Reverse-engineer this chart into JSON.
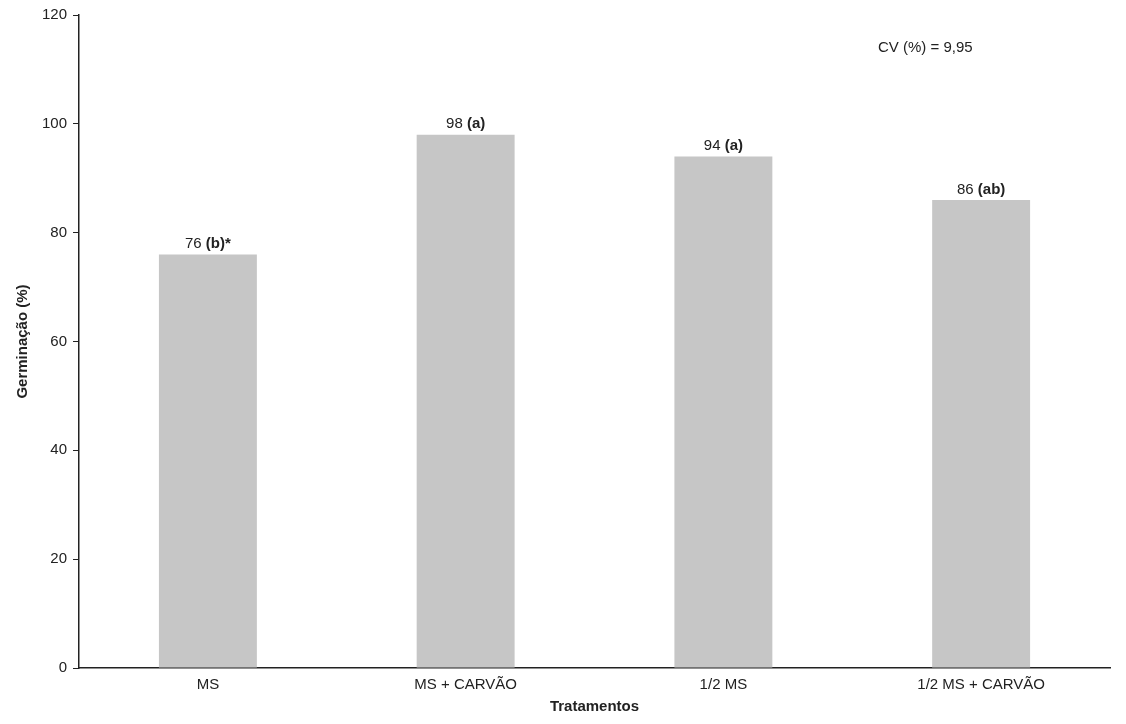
{
  "chart_data": {
    "type": "bar",
    "xlabel": "Tratamentos",
    "ylabel": "Germinação (%)",
    "categories": [
      "MS",
      "MS + CARVÃO",
      "1/2 MS",
      "1/2 MS + CARVÃO"
    ],
    "values": [
      76,
      98,
      94,
      86
    ],
    "value_labels": [
      "76 (b)*",
      "98 (a)",
      "94 (a)",
      "86 (ab)"
    ],
    "color": "#c6c6c6",
    "ylim": [
      0,
      120
    ],
    "yticks": [
      0,
      20,
      40,
      60,
      80,
      100,
      120
    ],
    "grid": false,
    "annotations": [
      "CV (%) = 9,95"
    ]
  }
}
